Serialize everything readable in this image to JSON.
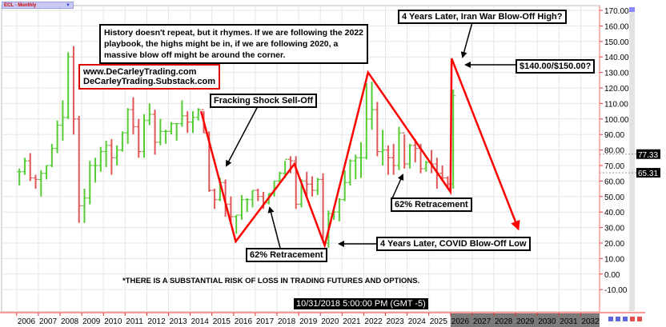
{
  "toolbar": {
    "symbol_selector": "ECL - Monthly"
  },
  "colors": {
    "up": "#55cc33",
    "down": "#e05555",
    "annotation": "#ff0000",
    "grid": "#e6e6e6",
    "axis": "#e88"
  },
  "annotations": {
    "main_note": [
      "History doesn't repeat, but it rhymes. If we are following the 2022",
      " playbook, the highs might be in, if we are following 2020, a",
      "massive blow off might be around the corner."
    ],
    "websites": [
      "www.DeCarleyTrading.com",
      "DeCarleyTrading.Substack.com"
    ],
    "fracking": "Fracking Shock Sell-Off",
    "retracement_1": "62% Retracement",
    "retracement_2": "62% Retracement",
    "covid": "4 Years Later, COVID Blow-Off Low",
    "iran": "4 Years Later, Iran War Blow-Off High?",
    "target": "$140.00/$150.00?",
    "disclaimer": "*THERE IS A SUBSTANTIAL RISK OF LOSS IN TRADING FUTURES AND OPTIONS.",
    "crosshair_time": "10/31/2018 5:00:00 PM (GMT -5)"
  },
  "chart_data": {
    "type": "bar",
    "period": "Monthly",
    "ylim": [
      -10,
      170
    ],
    "yticks": [
      "170.00",
      "160.00",
      "150.00",
      "140.00",
      "130.00",
      "120.00",
      "110.00",
      "100.00",
      "90.00",
      "80.00",
      "70.00",
      "60.00",
      "50.00",
      "40.00",
      "30.00",
      "20.00",
      "10.00",
      "0.00",
      "-10.00"
    ],
    "xticks": [
      "2006",
      "2007",
      "2008",
      "2009",
      "2010",
      "2011",
      "2012",
      "2013",
      "2014",
      "2015",
      "2016",
      "2017",
      "2018",
      "2019",
      "2020",
      "2021",
      "2022",
      "2023",
      "2024",
      "2025",
      "2026",
      "2027",
      "2028",
      "2029",
      "2030",
      "2031",
      "2032"
    ],
    "price_labels": [
      "77.33",
      "65.31"
    ],
    "grid": true,
    "bars_hlc_quarterly": [
      [
        "2006",
        68,
        57,
        66
      ],
      [
        "2006",
        75,
        64,
        73
      ],
      [
        "2006",
        78,
        60,
        62
      ],
      [
        "2006",
        64,
        55,
        61
      ],
      [
        "2007",
        67,
        50,
        65
      ],
      [
        "2007",
        70,
        61,
        70
      ],
      [
        "2007",
        84,
        69,
        81
      ],
      [
        "2007",
        99,
        78,
        96
      ],
      [
        "2008",
        112,
        86,
        101
      ],
      [
        "2008",
        143,
        100,
        140
      ],
      [
        "2008",
        147,
        90,
        100
      ],
      [
        "2008",
        102,
        33,
        44
      ],
      [
        "2009",
        55,
        33,
        49
      ],
      [
        "2009",
        73,
        45,
        70
      ],
      [
        "2009",
        75,
        59,
        70
      ],
      [
        "2009",
        82,
        66,
        79
      ],
      [
        "2010",
        86,
        69,
        83
      ],
      [
        "2010",
        87,
        64,
        75
      ],
      [
        "2010",
        83,
        70,
        80
      ],
      [
        "2010",
        92,
        79,
        91
      ],
      [
        "2011",
        107,
        84,
        106
      ],
      [
        "2011",
        114,
        90,
        95
      ],
      [
        "2011",
        100,
        75,
        79
      ],
      [
        "2011",
        103,
        75,
        99
      ],
      [
        "2012",
        110,
        96,
        103
      ],
      [
        "2012",
        106,
        77,
        85
      ],
      [
        "2012",
        100,
        83,
        92
      ],
      [
        "2012",
        93,
        84,
        92
      ],
      [
        "2013",
        98,
        90,
        97
      ],
      [
        "2013",
        97,
        86,
        97
      ],
      [
        "2013",
        112,
        95,
        102
      ],
      [
        "2013",
        105,
        91,
        98
      ],
      [
        "2014",
        105,
        91,
        101
      ],
      [
        "2014",
        107,
        99,
        106
      ],
      [
        "2014",
        105,
        91,
        91
      ],
      [
        "2014",
        92,
        53,
        54
      ],
      [
        "2015",
        55,
        42,
        48
      ],
      [
        "2015",
        62,
        47,
        59
      ],
      [
        "2015",
        61,
        37,
        45
      ],
      [
        "2015",
        50,
        34,
        37
      ],
      [
        "2016",
        38,
        26,
        38
      ],
      [
        "2016",
        51,
        35,
        48
      ],
      [
        "2016",
        49,
        40,
        48
      ],
      [
        "2016",
        54,
        43,
        54
      ],
      [
        "2017",
        55,
        47,
        50
      ],
      [
        "2017",
        53,
        42,
        46
      ],
      [
        "2017",
        52,
        45,
        52
      ],
      [
        "2017",
        60,
        50,
        60
      ],
      [
        "2018",
        66,
        59,
        65
      ],
      [
        "2018",
        73,
        62,
        74
      ],
      [
        "2018",
        76,
        65,
        73
      ],
      [
        "2018",
        76,
        42,
        45
      ],
      [
        "2019",
        61,
        43,
        60
      ],
      [
        "2019",
        66,
        50,
        58
      ],
      [
        "2019",
        63,
        50,
        54
      ],
      [
        "2019",
        62,
        51,
        61
      ],
      [
        "2020",
        65,
        20,
        20
      ],
      [
        "2020",
        41,
        17,
        39
      ],
      [
        "2020",
        43,
        35,
        40
      ],
      [
        "2020",
        49,
        34,
        48
      ],
      [
        "2021",
        67,
        47,
        59
      ],
      [
        "2021",
        74,
        57,
        73
      ],
      [
        "2021",
        77,
        61,
        75
      ],
      [
        "2021",
        85,
        62,
        75
      ],
      [
        "2022",
        123,
        74,
        100
      ],
      [
        "2022",
        124,
        93,
        106
      ],
      [
        "2022",
        111,
        76,
        79
      ],
      [
        "2022",
        93,
        70,
        80
      ],
      [
        "2023",
        83,
        64,
        75
      ],
      [
        "2023",
        84,
        64,
        70
      ],
      [
        "2023",
        95,
        67,
        91
      ],
      [
        "2023",
        90,
        68,
        71
      ],
      [
        "2024",
        84,
        68,
        83
      ],
      [
        "2024",
        87,
        72,
        81
      ],
      [
        "2024",
        84,
        65,
        68
      ],
      [
        "2024",
        73,
        66,
        72
      ],
      [
        "2025",
        80,
        65,
        71
      ],
      [
        "2025",
        75,
        55,
        65
      ],
      [
        "2025",
        70,
        60,
        62
      ],
      [
        "2025",
        63,
        55,
        58
      ],
      [
        "2026",
        119,
        55,
        115
      ]
    ],
    "zigzag": [
      [
        2014.5,
        105
      ],
      [
        2016.1,
        21
      ],
      [
        2018.8,
        71
      ],
      [
        2020.2,
        18.5
      ],
      [
        2022.2,
        130
      ],
      [
        2026.0,
        53
      ],
      [
        2026.05,
        139
      ],
      [
        2029.1,
        30
      ]
    ]
  }
}
